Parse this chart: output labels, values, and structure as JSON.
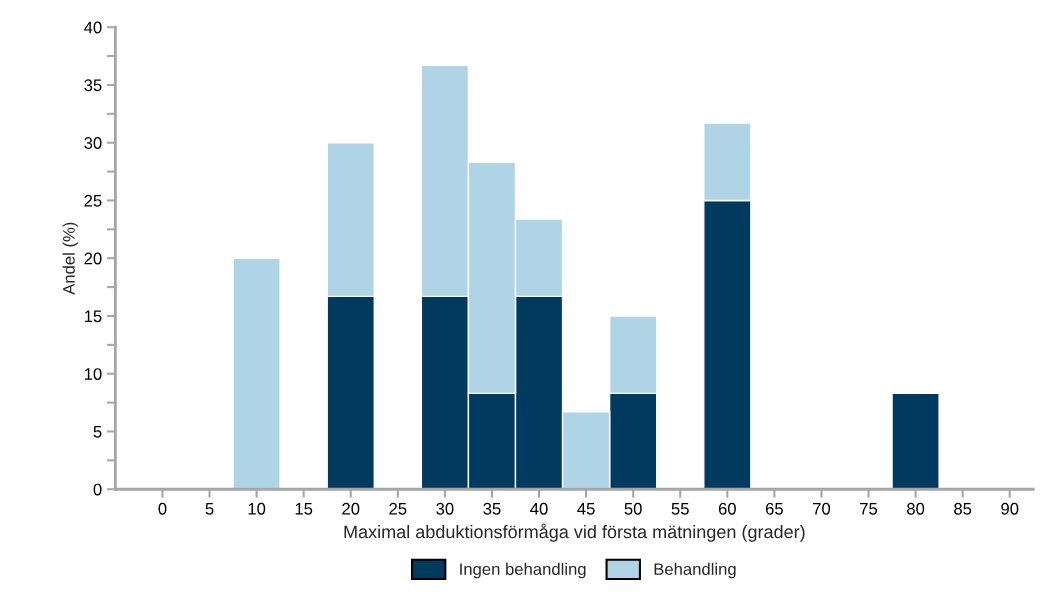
{
  "chart_data": {
    "type": "bar",
    "stacked": true,
    "xlabel": "Maximal abduktionsförmåga vid första mätningen (grader)",
    "ylabel": "Andel (%)",
    "categories": [
      "0",
      "5",
      "10",
      "15",
      "20",
      "25",
      "30",
      "35",
      "40",
      "45",
      "50",
      "55",
      "60",
      "65",
      "70",
      "75",
      "80",
      "85",
      "90"
    ],
    "series": [
      {
        "name": "Ingen behandling",
        "color": "#003b5f",
        "values": [
          null,
          null,
          null,
          null,
          16.7,
          null,
          16.7,
          8.3,
          16.7,
          null,
          8.3,
          null,
          25,
          null,
          null,
          null,
          8.3,
          null,
          null
        ]
      },
      {
        "name": "Behandling",
        "color": "#afd4e6",
        "values": [
          null,
          null,
          20,
          null,
          13.3,
          null,
          20,
          20,
          6.7,
          6.7,
          6.7,
          null,
          6.7,
          null,
          null,
          null,
          null,
          null,
          null
        ]
      }
    ],
    "ylim": [
      0,
      40
    ],
    "yticks": [
      0,
      {
        "value": 2.5,
        "label": null
      },
      5,
      {
        "value": 7.5,
        "label": null
      },
      10,
      {
        "value": 12.5,
        "label": null
      },
      15,
      {
        "value": 17.5,
        "label": null
      },
      20,
      {
        "value": 22.5,
        "label": null
      },
      25,
      {
        "value": 27.5,
        "label": null
      },
      30,
      {
        "value": 32.5,
        "label": null
      },
      35,
      {
        "value": 37.5,
        "label": null
      },
      40
    ],
    "grid": false,
    "legend": "bottom"
  }
}
